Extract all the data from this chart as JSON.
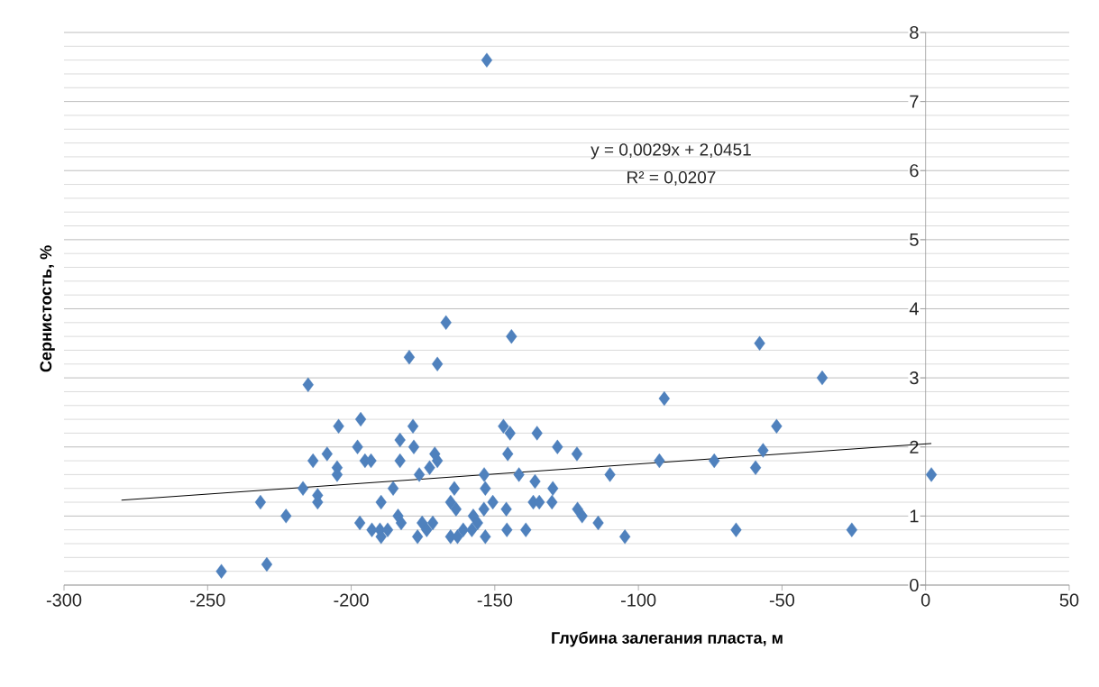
{
  "chart_data": {
    "type": "scatter",
    "xlabel": "Глубина залегания пласта, м",
    "ylabel": "Сернистость, %",
    "annotations": [
      "y = 0,0029x + 2,0451",
      "R² = 0,0207"
    ],
    "xlim": [
      -300,
      50
    ],
    "xticks": [
      -300,
      -250,
      -200,
      -150,
      -100,
      -50,
      0,
      50
    ],
    "ylim": [
      0,
      8
    ],
    "yticks": [
      0,
      1,
      2,
      3,
      4,
      5,
      6,
      7,
      8
    ],
    "grid": "y",
    "series": [
      {
        "type": "scatter",
        "color": "#4f81bd",
        "marker": "diamond",
        "x": [
          -152.8,
          -167,
          -144.2,
          -57.8,
          -179.8,
          -170,
          -36,
          -215,
          -91,
          -196.7,
          -204.4,
          -178.5,
          -147,
          -51.9,
          -144.7,
          -135.3,
          -183,
          -197.8,
          -178.2,
          -128.2,
          -56.6,
          -208.4,
          -170.9,
          -145.5,
          -121.4,
          -213.3,
          -195.2,
          -193.1,
          -183,
          -170,
          -92.7,
          -73.6,
          -204.9,
          -172.7,
          -59.2,
          -204.9,
          -176.3,
          -153.7,
          -141.6,
          -109.9,
          2,
          -136,
          -216.8,
          -185.4,
          -164.1,
          -153.3,
          -129.8,
          -211.7,
          -231.6,
          -211.7,
          -189.6,
          -165.4,
          -150.7,
          -136.6,
          -134.5,
          -130.1,
          -163.5,
          -153.8,
          -146,
          -121.2,
          -222.7,
          -183.7,
          -157.5,
          -119.6,
          -197,
          -182.6,
          -175.3,
          -171.6,
          -156,
          -114,
          -192.8,
          -190,
          -187.3,
          -173.7,
          -161,
          -158,
          -145.8,
          -139.2,
          -66,
          -25.7,
          -189.6,
          -176.9,
          -165.4,
          -163,
          -153.3,
          -104.7,
          -229.4,
          -245.2
        ],
        "values": [
          7.6,
          3.8,
          3.6,
          3.5,
          3.3,
          3.2,
          3.0,
          2.9,
          2.7,
          2.4,
          2.3,
          2.3,
          2.3,
          2.3,
          2.2,
          2.2,
          2.1,
          2.0,
          2.0,
          2.0,
          1.95,
          1.9,
          1.9,
          1.9,
          1.9,
          1.8,
          1.8,
          1.8,
          1.8,
          1.8,
          1.8,
          1.8,
          1.7,
          1.7,
          1.7,
          1.6,
          1.6,
          1.6,
          1.6,
          1.6,
          1.6,
          1.5,
          1.4,
          1.4,
          1.4,
          1.4,
          1.4,
          1.3,
          1.2,
          1.2,
          1.2,
          1.2,
          1.2,
          1.2,
          1.2,
          1.2,
          1.1,
          1.1,
          1.1,
          1.1,
          1.0,
          1.0,
          1.0,
          1.0,
          0.9,
          0.9,
          0.9,
          0.9,
          0.9,
          0.9,
          0.8,
          0.8,
          0.8,
          0.8,
          0.8,
          0.8,
          0.8,
          0.8,
          0.8,
          0.8,
          0.7,
          0.7,
          0.7,
          0.7,
          0.7,
          0.7,
          0.3,
          0.2
        ]
      },
      {
        "type": "line",
        "color": "#000000",
        "marker": "none",
        "x": [
          -280,
          2
        ],
        "values": [
          1.23,
          2.05
        ]
      }
    ]
  }
}
